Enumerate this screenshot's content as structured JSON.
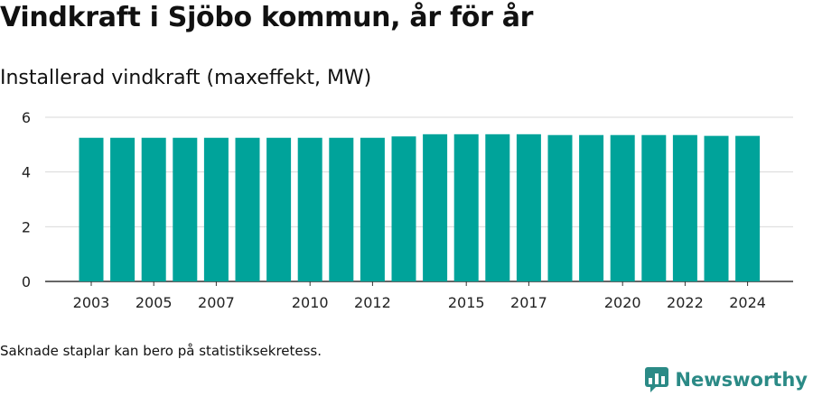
{
  "header": {
    "title": "Vindkraft i Sjöbo kommun, år för år",
    "subtitle": "Installerad vindkraft (maxeffekt, MW)"
  },
  "footer": {
    "note": "Saknade staplar kan bero på statistiksekretess.",
    "brand": "Newsworthy"
  },
  "colors": {
    "bar": "#00A39A",
    "grid": "#d9d9d9",
    "axis": "#333333",
    "brand": "#2b8a86"
  },
  "chart_data": {
    "type": "bar",
    "title": "",
    "xlabel": "",
    "ylabel": "",
    "categories": [
      "2003",
      "2004",
      "2005",
      "2006",
      "2007",
      "2008",
      "2009",
      "2010",
      "2011",
      "2012",
      "2013",
      "2014",
      "2015",
      "2016",
      "2017",
      "2018",
      "2019",
      "2020",
      "2021",
      "2022",
      "2023",
      "2024"
    ],
    "x_tick_labels": [
      "2003",
      "2005",
      "2007",
      "2010",
      "2012",
      "2015",
      "2017",
      "2020",
      "2022",
      "2024"
    ],
    "values": [
      5.25,
      5.25,
      5.25,
      5.25,
      5.25,
      5.25,
      5.25,
      5.25,
      5.25,
      5.25,
      5.3,
      5.38,
      5.38,
      5.38,
      5.38,
      5.35,
      5.35,
      5.35,
      5.35,
      5.35,
      5.32,
      5.32
    ],
    "ylim": [
      0,
      6
    ],
    "yticks": [
      0,
      2,
      4,
      6
    ],
    "grid": true,
    "legend": "none"
  }
}
